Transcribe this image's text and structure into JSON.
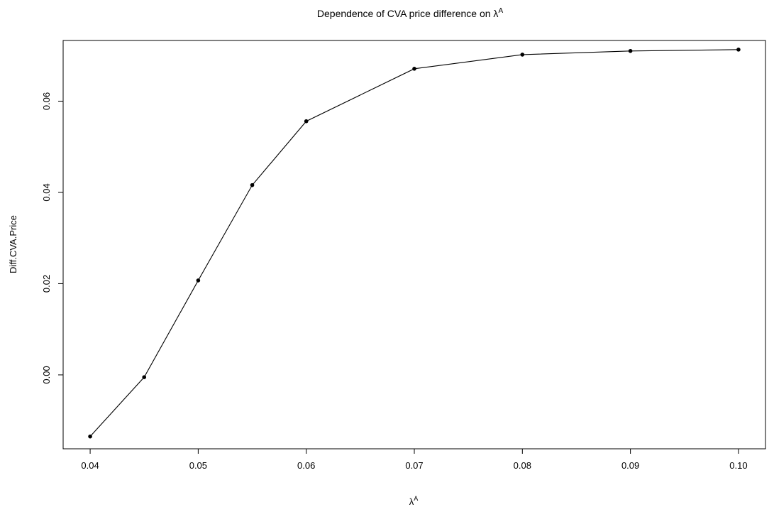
{
  "chart_data": {
    "type": "line",
    "title": "Dependence of CVA price difference on λ",
    "title_superscript": "A",
    "xlabel": "λ",
    "xlabel_superscript": "A",
    "ylabel": "Diff.CVA.Price",
    "xlim": [
      0.0375,
      0.1025
    ],
    "ylim": [
      -0.0162,
      0.0733
    ],
    "x_ticks": [
      {
        "value": 0.04,
        "label": "0.04"
      },
      {
        "value": 0.05,
        "label": "0.05"
      },
      {
        "value": 0.06,
        "label": "0.06"
      },
      {
        "value": 0.07,
        "label": "0.07"
      },
      {
        "value": 0.08,
        "label": "0.08"
      },
      {
        "value": 0.09,
        "label": "0.09"
      },
      {
        "value": 0.1,
        "label": "0.10"
      }
    ],
    "y_ticks": [
      {
        "value": 0.0,
        "label": "0.00"
      },
      {
        "value": 0.02,
        "label": "0.02"
      },
      {
        "value": 0.04,
        "label": "0.04"
      },
      {
        "value": 0.06,
        "label": "0.06"
      }
    ],
    "grid": false,
    "series": [
      {
        "color": "#000000",
        "x": [
          0.04,
          0.045,
          0.05,
          0.055,
          0.06,
          0.07,
          0.08,
          0.09,
          0.1
        ],
        "y": [
          -0.0135,
          -0.0005,
          0.0207,
          0.0416,
          0.0556,
          0.0671,
          0.0702,
          0.071,
          0.0713
        ]
      }
    ]
  }
}
